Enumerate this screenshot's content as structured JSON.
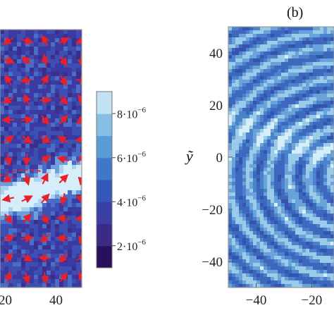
{
  "figure": {
    "panel_label": "(b)",
    "left_panel": {
      "x_tick_labels": [
        "20",
        "40"
      ],
      "note": "cropped map with red vector arrows"
    },
    "right_panel": {
      "y_axis_label": "ỹ",
      "y_tick_labels": [
        "40",
        "20",
        "0",
        "−20",
        "−40"
      ],
      "x_tick_labels": [
        "−40",
        "−20"
      ]
    },
    "colorbar": {
      "tick_labels": [
        {
          "mantissa": "8·10",
          "exp": "−6"
        },
        {
          "mantissa": "6·10",
          "exp": "−6"
        },
        {
          "mantissa": "4·10",
          "exp": "−6"
        },
        {
          "mantissa": "2·10",
          "exp": "−6"
        }
      ],
      "level_colors": [
        "#2a0f5c",
        "#3b2a86",
        "#3a3fa3",
        "#3557b7",
        "#3f78c8",
        "#5a9bd8",
        "#86bee6",
        "#c3e3f4"
      ]
    },
    "colors": {
      "arrow": "#e8202a",
      "frame": "#9a9a9a",
      "field_dark": "#3a2f8c",
      "field_mid": "#3d68be",
      "field_light": "#cfe9f7"
    }
  },
  "chart_data": [
    {
      "type": "heatmap",
      "title": "",
      "xlabel": "",
      "ylabel": "",
      "xlim": [
        null,
        50
      ],
      "x_ticks": [
        20,
        40
      ],
      "colorbar_ticks": [
        2e-06,
        4e-06,
        6e-06,
        8e-06
      ],
      "colorbar_range": [
        1e-06,
        9e-06
      ]
    },
    {
      "type": "heatmap",
      "title": "",
      "xlabel": "",
      "ylabel": "ỹ",
      "xlim": [
        -50,
        null
      ],
      "ylim": [
        -50,
        50
      ],
      "x_ticks": [
        -40,
        -20
      ],
      "y_ticks": [
        -40,
        -20,
        0,
        20,
        40
      ]
    }
  ]
}
